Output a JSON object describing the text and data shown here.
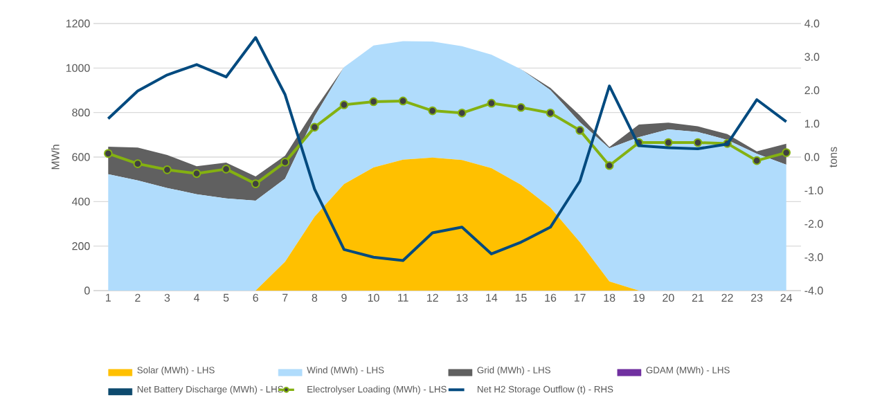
{
  "chart_data": {
    "type": "area",
    "stacked": true,
    "grid": "y",
    "legend": "bottom",
    "ylabel": "MWh",
    "y2label": "tons",
    "categories": [
      "1",
      "2",
      "3",
      "4",
      "5",
      "6",
      "7",
      "8",
      "9",
      "10",
      "11",
      "12",
      "13",
      "14",
      "15",
      "16",
      "17",
      "18",
      "19",
      "20",
      "21",
      "22",
      "23",
      "24"
    ],
    "ylim": [
      0,
      1200
    ],
    "yticks": [
      0,
      200,
      400,
      600,
      800,
      1000,
      1200
    ],
    "y2lim": [
      -4,
      4
    ],
    "y2ticks": [
      {
        "value": -4,
        "label": "-4.0"
      },
      {
        "value": -3,
        "label": "-3.0"
      },
      {
        "value": -2,
        "label": "-2.0"
      },
      {
        "value": -1,
        "label": "-1.0"
      },
      {
        "value": 0,
        "label": "0.0"
      },
      {
        "value": 1,
        "label": "1.0"
      },
      {
        "value": 2,
        "label": "2.0"
      },
      {
        "value": 3,
        "label": "3.0"
      },
      {
        "value": 4,
        "label": "4.0"
      }
    ],
    "series": [
      {
        "name": "Solar (MWh) - LHS",
        "color": "#ffc000",
        "values": [
          0,
          0,
          0,
          0,
          0,
          0,
          130,
          332,
          479,
          553,
          588,
          598,
          587,
          550,
          476,
          373,
          218,
          41,
          0,
          0,
          0,
          0,
          0,
          0
        ]
      },
      {
        "name": "Wind (MWh) - LHS",
        "color": "#b0dcfc",
        "values": [
          523,
          495,
          461,
          433,
          414,
          404,
          373,
          451,
          525,
          548,
          533,
          521,
          511,
          510,
          519,
          528,
          538,
          599,
          689,
          724,
          713,
          677,
          615,
          566
        ]
      },
      {
        "name": "Grid (MWh) - LHS",
        "color": "#606060",
        "values": [
          124,
          148,
          148,
          126,
          161,
          109,
          103,
          30,
          0,
          0,
          0,
          0,
          0,
          0,
          0,
          10,
          31,
          5,
          57,
          31,
          25,
          26,
          11,
          94
        ]
      },
      {
        "name": "GDAM (MWh) - LHS",
        "color": "#7030a0",
        "values": [
          null,
          null,
          null,
          null,
          null,
          null,
          null,
          null,
          null,
          null,
          null,
          null,
          null,
          null,
          null,
          null,
          null,
          null,
          null,
          null,
          null,
          null,
          null,
          null
        ]
      },
      {
        "name": "Net Battery Discharge (MWh) - LHS",
        "color": "#0d4a6e",
        "values": [
          null,
          null,
          null,
          null,
          null,
          null,
          null,
          null,
          null,
          null,
          null,
          null,
          null,
          null,
          null,
          null,
          null,
          null,
          null,
          null,
          null,
          null,
          null,
          null
        ]
      },
      {
        "name": "Electrolyser Loading (MWh) - LHS",
        "type": "line",
        "marker": "circle",
        "axis": "y",
        "color": "#84b111",
        "values": [
          616,
          570,
          543,
          526,
          546,
          480,
          577,
          734,
          835,
          849,
          852,
          808,
          798,
          842,
          823,
          798,
          720,
          562,
          665,
          665,
          665,
          661,
          584,
          620
        ]
      },
      {
        "name": "Net H2 Storage Outflow (t) - RHS",
        "type": "line",
        "axis": "y2",
        "color": "#004a7f",
        "values": [
          1.15,
          1.98,
          2.46,
          2.77,
          2.4,
          3.58,
          1.87,
          -0.96,
          -2.77,
          -3.0,
          -3.1,
          -2.27,
          -2.1,
          -2.9,
          -2.55,
          -2.1,
          -0.72,
          2.13,
          0.34,
          0.28,
          0.25,
          0.39,
          1.72,
          1.06
        ]
      }
    ]
  }
}
